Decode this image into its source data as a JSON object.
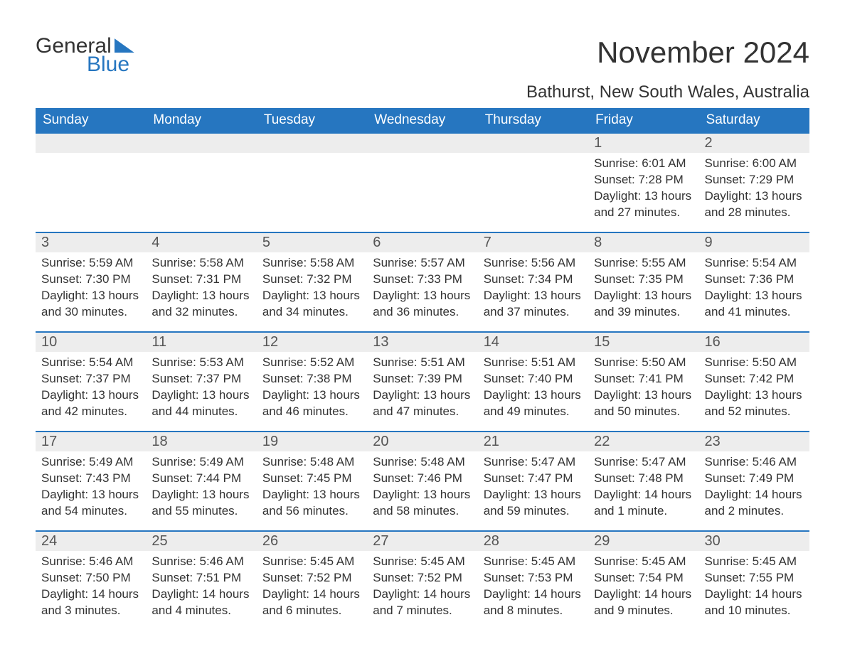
{
  "logo": {
    "line1": "General",
    "line2": "Blue"
  },
  "title": "November 2024",
  "location": "Bathurst, New South Wales, Australia",
  "colors": {
    "header_bg": "#2676c0",
    "header_text": "#ffffff",
    "daynum_bg": "#ededed",
    "text": "#333333",
    "border": "#2676c0"
  },
  "days_of_week": [
    "Sunday",
    "Monday",
    "Tuesday",
    "Wednesday",
    "Thursday",
    "Friday",
    "Saturday"
  ],
  "weeks": [
    [
      null,
      null,
      null,
      null,
      null,
      {
        "n": "1",
        "sunrise": "Sunrise: 6:01 AM",
        "sunset": "Sunset: 7:28 PM",
        "daylight": "Daylight: 13 hours and 27 minutes."
      },
      {
        "n": "2",
        "sunrise": "Sunrise: 6:00 AM",
        "sunset": "Sunset: 7:29 PM",
        "daylight": "Daylight: 13 hours and 28 minutes."
      }
    ],
    [
      {
        "n": "3",
        "sunrise": "Sunrise: 5:59 AM",
        "sunset": "Sunset: 7:30 PM",
        "daylight": "Daylight: 13 hours and 30 minutes."
      },
      {
        "n": "4",
        "sunrise": "Sunrise: 5:58 AM",
        "sunset": "Sunset: 7:31 PM",
        "daylight": "Daylight: 13 hours and 32 minutes."
      },
      {
        "n": "5",
        "sunrise": "Sunrise: 5:58 AM",
        "sunset": "Sunset: 7:32 PM",
        "daylight": "Daylight: 13 hours and 34 minutes."
      },
      {
        "n": "6",
        "sunrise": "Sunrise: 5:57 AM",
        "sunset": "Sunset: 7:33 PM",
        "daylight": "Daylight: 13 hours and 36 minutes."
      },
      {
        "n": "7",
        "sunrise": "Sunrise: 5:56 AM",
        "sunset": "Sunset: 7:34 PM",
        "daylight": "Daylight: 13 hours and 37 minutes."
      },
      {
        "n": "8",
        "sunrise": "Sunrise: 5:55 AM",
        "sunset": "Sunset: 7:35 PM",
        "daylight": "Daylight: 13 hours and 39 minutes."
      },
      {
        "n": "9",
        "sunrise": "Sunrise: 5:54 AM",
        "sunset": "Sunset: 7:36 PM",
        "daylight": "Daylight: 13 hours and 41 minutes."
      }
    ],
    [
      {
        "n": "10",
        "sunrise": "Sunrise: 5:54 AM",
        "sunset": "Sunset: 7:37 PM",
        "daylight": "Daylight: 13 hours and 42 minutes."
      },
      {
        "n": "11",
        "sunrise": "Sunrise: 5:53 AM",
        "sunset": "Sunset: 7:37 PM",
        "daylight": "Daylight: 13 hours and 44 minutes."
      },
      {
        "n": "12",
        "sunrise": "Sunrise: 5:52 AM",
        "sunset": "Sunset: 7:38 PM",
        "daylight": "Daylight: 13 hours and 46 minutes."
      },
      {
        "n": "13",
        "sunrise": "Sunrise: 5:51 AM",
        "sunset": "Sunset: 7:39 PM",
        "daylight": "Daylight: 13 hours and 47 minutes."
      },
      {
        "n": "14",
        "sunrise": "Sunrise: 5:51 AM",
        "sunset": "Sunset: 7:40 PM",
        "daylight": "Daylight: 13 hours and 49 minutes."
      },
      {
        "n": "15",
        "sunrise": "Sunrise: 5:50 AM",
        "sunset": "Sunset: 7:41 PM",
        "daylight": "Daylight: 13 hours and 50 minutes."
      },
      {
        "n": "16",
        "sunrise": "Sunrise: 5:50 AM",
        "sunset": "Sunset: 7:42 PM",
        "daylight": "Daylight: 13 hours and 52 minutes."
      }
    ],
    [
      {
        "n": "17",
        "sunrise": "Sunrise: 5:49 AM",
        "sunset": "Sunset: 7:43 PM",
        "daylight": "Daylight: 13 hours and 54 minutes."
      },
      {
        "n": "18",
        "sunrise": "Sunrise: 5:49 AM",
        "sunset": "Sunset: 7:44 PM",
        "daylight": "Daylight: 13 hours and 55 minutes."
      },
      {
        "n": "19",
        "sunrise": "Sunrise: 5:48 AM",
        "sunset": "Sunset: 7:45 PM",
        "daylight": "Daylight: 13 hours and 56 minutes."
      },
      {
        "n": "20",
        "sunrise": "Sunrise: 5:48 AM",
        "sunset": "Sunset: 7:46 PM",
        "daylight": "Daylight: 13 hours and 58 minutes."
      },
      {
        "n": "21",
        "sunrise": "Sunrise: 5:47 AM",
        "sunset": "Sunset: 7:47 PM",
        "daylight": "Daylight: 13 hours and 59 minutes."
      },
      {
        "n": "22",
        "sunrise": "Sunrise: 5:47 AM",
        "sunset": "Sunset: 7:48 PM",
        "daylight": "Daylight: 14 hours and 1 minute."
      },
      {
        "n": "23",
        "sunrise": "Sunrise: 5:46 AM",
        "sunset": "Sunset: 7:49 PM",
        "daylight": "Daylight: 14 hours and 2 minutes."
      }
    ],
    [
      {
        "n": "24",
        "sunrise": "Sunrise: 5:46 AM",
        "sunset": "Sunset: 7:50 PM",
        "daylight": "Daylight: 14 hours and 3 minutes."
      },
      {
        "n": "25",
        "sunrise": "Sunrise: 5:46 AM",
        "sunset": "Sunset: 7:51 PM",
        "daylight": "Daylight: 14 hours and 4 minutes."
      },
      {
        "n": "26",
        "sunrise": "Sunrise: 5:45 AM",
        "sunset": "Sunset: 7:52 PM",
        "daylight": "Daylight: 14 hours and 6 minutes."
      },
      {
        "n": "27",
        "sunrise": "Sunrise: 5:45 AM",
        "sunset": "Sunset: 7:52 PM",
        "daylight": "Daylight: 14 hours and 7 minutes."
      },
      {
        "n": "28",
        "sunrise": "Sunrise: 5:45 AM",
        "sunset": "Sunset: 7:53 PM",
        "daylight": "Daylight: 14 hours and 8 minutes."
      },
      {
        "n": "29",
        "sunrise": "Sunrise: 5:45 AM",
        "sunset": "Sunset: 7:54 PM",
        "daylight": "Daylight: 14 hours and 9 minutes."
      },
      {
        "n": "30",
        "sunrise": "Sunrise: 5:45 AM",
        "sunset": "Sunset: 7:55 PM",
        "daylight": "Daylight: 14 hours and 10 minutes."
      }
    ]
  ]
}
